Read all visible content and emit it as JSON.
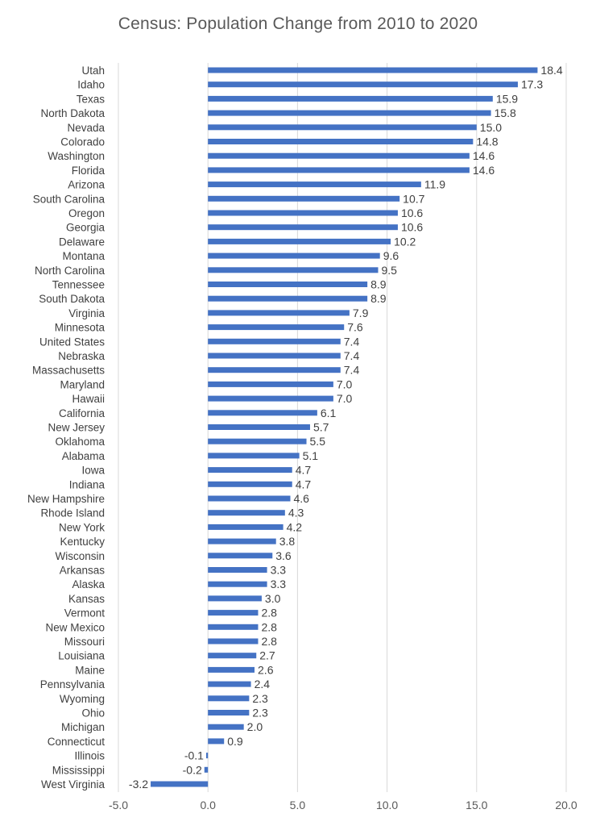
{
  "chart_data": {
    "type": "bar",
    "orientation": "horizontal",
    "title": "Census: Population Change from 2010 to 2020",
    "xlabel": "",
    "ylabel": "",
    "xlim": [
      -5,
      20
    ],
    "xticks": [
      "-5.0",
      "0.0",
      "5.0",
      "10.0",
      "15.0",
      "20.0"
    ],
    "grid": "vertical",
    "legend": "none",
    "bar_color": "#4472C4",
    "categories": [
      "Utah",
      "Idaho",
      "Texas",
      "North Dakota",
      "Nevada",
      "Colorado",
      "Washington",
      "Florida",
      "Arizona",
      "South Carolina",
      "Oregon",
      "Georgia",
      "Delaware",
      "Montana",
      "North Carolina",
      "Tennessee",
      "South Dakota",
      "Virginia",
      "Minnesota",
      "United States",
      "Nebraska",
      "Massachusetts",
      "Maryland",
      "Hawaii",
      "California",
      "New Jersey",
      "Oklahoma",
      "Alabama",
      "Iowa",
      "Indiana",
      "New Hampshire",
      "Rhode Island",
      "New York",
      "Kentucky",
      "Wisconsin",
      "Arkansas",
      "Alaska",
      "Kansas",
      "Vermont",
      "New Mexico",
      "Missouri",
      "Louisiana",
      "Maine",
      "Pennsylvania",
      "Wyoming",
      "Ohio",
      "Michigan",
      "Connecticut",
      "Illinois",
      "Mississippi",
      "West Virginia"
    ],
    "values": [
      18.4,
      17.3,
      15.9,
      15.8,
      15.0,
      14.8,
      14.6,
      14.6,
      11.9,
      10.7,
      10.6,
      10.6,
      10.2,
      9.6,
      9.5,
      8.9,
      8.9,
      7.9,
      7.6,
      7.4,
      7.4,
      7.4,
      7.0,
      7.0,
      6.1,
      5.7,
      5.5,
      5.1,
      4.7,
      4.7,
      4.6,
      4.3,
      4.2,
      3.8,
      3.6,
      3.3,
      3.3,
      3.0,
      2.8,
      2.8,
      2.8,
      2.7,
      2.6,
      2.4,
      2.3,
      2.3,
      2.0,
      0.9,
      -0.1,
      -0.2,
      -3.2
    ],
    "value_labels": [
      "18.4",
      "17.3",
      "15.9",
      "15.8",
      "15.0",
      "14.8",
      "14.6",
      "14.6",
      "11.9",
      "10.7",
      "10.6",
      "10.6",
      "10.2",
      "9.6",
      "9.5",
      "8.9",
      "8.9",
      "7.9",
      "7.6",
      "7.4",
      "7.4",
      "7.4",
      "7.0",
      "7.0",
      "6.1",
      "5.7",
      "5.5",
      "5.1",
      "4.7",
      "4.7",
      "4.6",
      "4.3",
      "4.2",
      "3.8",
      "3.6",
      "3.3",
      "3.3",
      "3.0",
      "2.8",
      "2.8",
      "2.8",
      "2.7",
      "2.6",
      "2.4",
      "2.3",
      "2.3",
      "2.0",
      "0.9",
      "-0.1",
      "-0.2",
      "-3.2"
    ]
  }
}
